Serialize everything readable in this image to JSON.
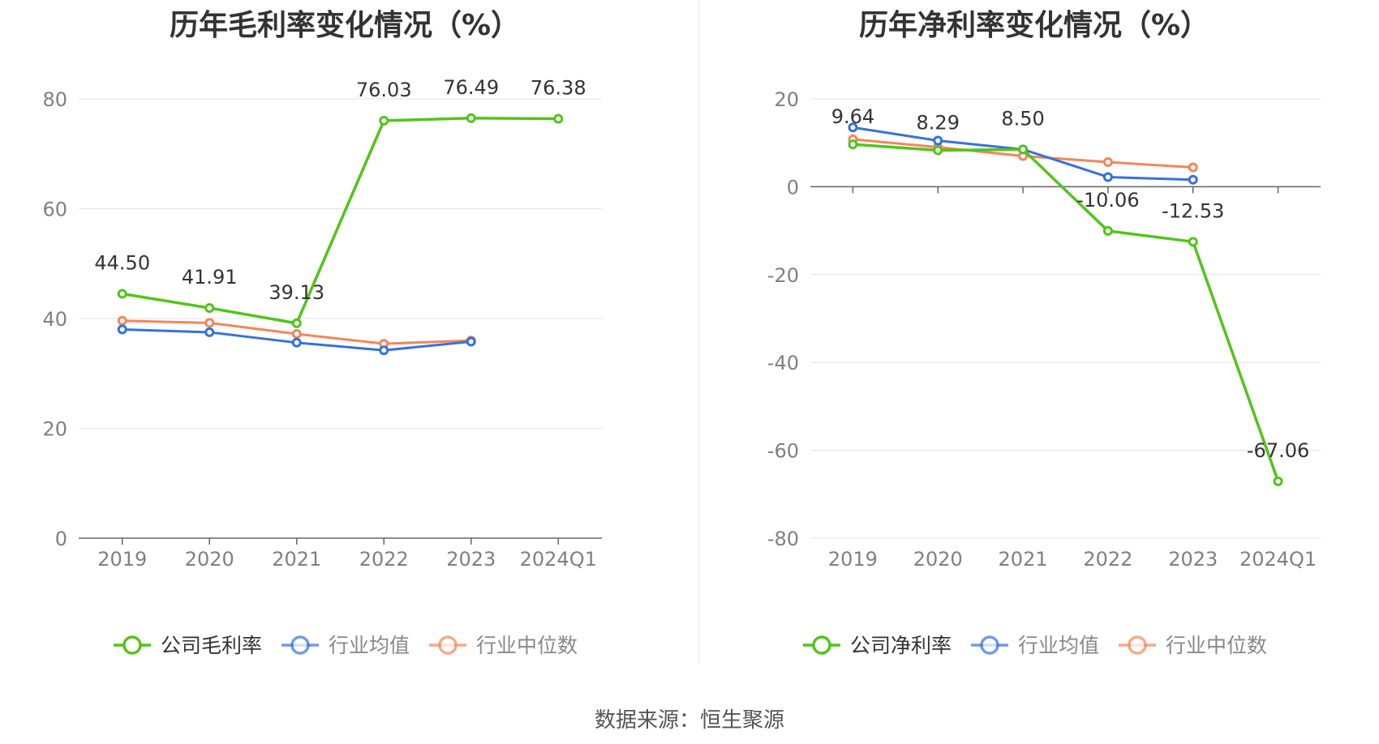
{
  "source_text": "数据来源：恒生聚源",
  "colors": {
    "company": "#52c41a",
    "avg": "#3670e0",
    "median": "#f5855a",
    "grid": "#e0e3ec",
    "axis": "#666666",
    "label": "#333333",
    "tick": "#808080"
  },
  "chart_data": [
    {
      "type": "line",
      "title": "历年毛利率变化情况（%）",
      "categories": [
        "2019",
        "2020",
        "2021",
        "2022",
        "2023",
        "2024Q1"
      ],
      "ylim": [
        0,
        80
      ],
      "yticks": [
        "0",
        "20",
        "40",
        "60",
        "80"
      ],
      "legend_position": "bottom",
      "grid": true,
      "series": [
        {
          "name": "公司毛利率",
          "key": "company",
          "values": [
            44.5,
            41.91,
            39.13,
            76.03,
            76.49,
            76.38
          ],
          "labels": [
            "44.50",
            "41.91",
            "39.13",
            "76.03",
            "76.49",
            "76.38"
          ]
        },
        {
          "name": "行业均值",
          "key": "avg",
          "values": [
            38.0,
            37.5,
            35.6,
            34.2,
            35.8,
            null
          ]
        },
        {
          "name": "行业中位数",
          "key": "median",
          "values": [
            39.6,
            39.2,
            37.2,
            35.4,
            36.0,
            null
          ]
        }
      ]
    },
    {
      "type": "line",
      "title": "历年净利率变化情况（%）",
      "categories": [
        "2019",
        "2020",
        "2021",
        "2022",
        "2023",
        "2024Q1"
      ],
      "ylim": [
        -80,
        20
      ],
      "yticks": [
        "-80",
        "-60",
        "-40",
        "-20",
        "0",
        "20"
      ],
      "legend_position": "bottom",
      "grid": true,
      "series": [
        {
          "name": "公司净利率",
          "key": "company",
          "values": [
            9.64,
            8.29,
            8.5,
            -10.06,
            -12.53,
            -67.06
          ],
          "labels": [
            "9.64",
            "8.29",
            "8.50",
            "-10.06",
            "-12.53",
            "-67.06"
          ]
        },
        {
          "name": "行业均值",
          "key": "avg",
          "values": [
            13.5,
            10.5,
            8.5,
            2.2,
            1.6,
            null
          ]
        },
        {
          "name": "行业中位数",
          "key": "median",
          "values": [
            10.8,
            9.0,
            7.0,
            5.6,
            4.4,
            null
          ]
        }
      ]
    }
  ]
}
